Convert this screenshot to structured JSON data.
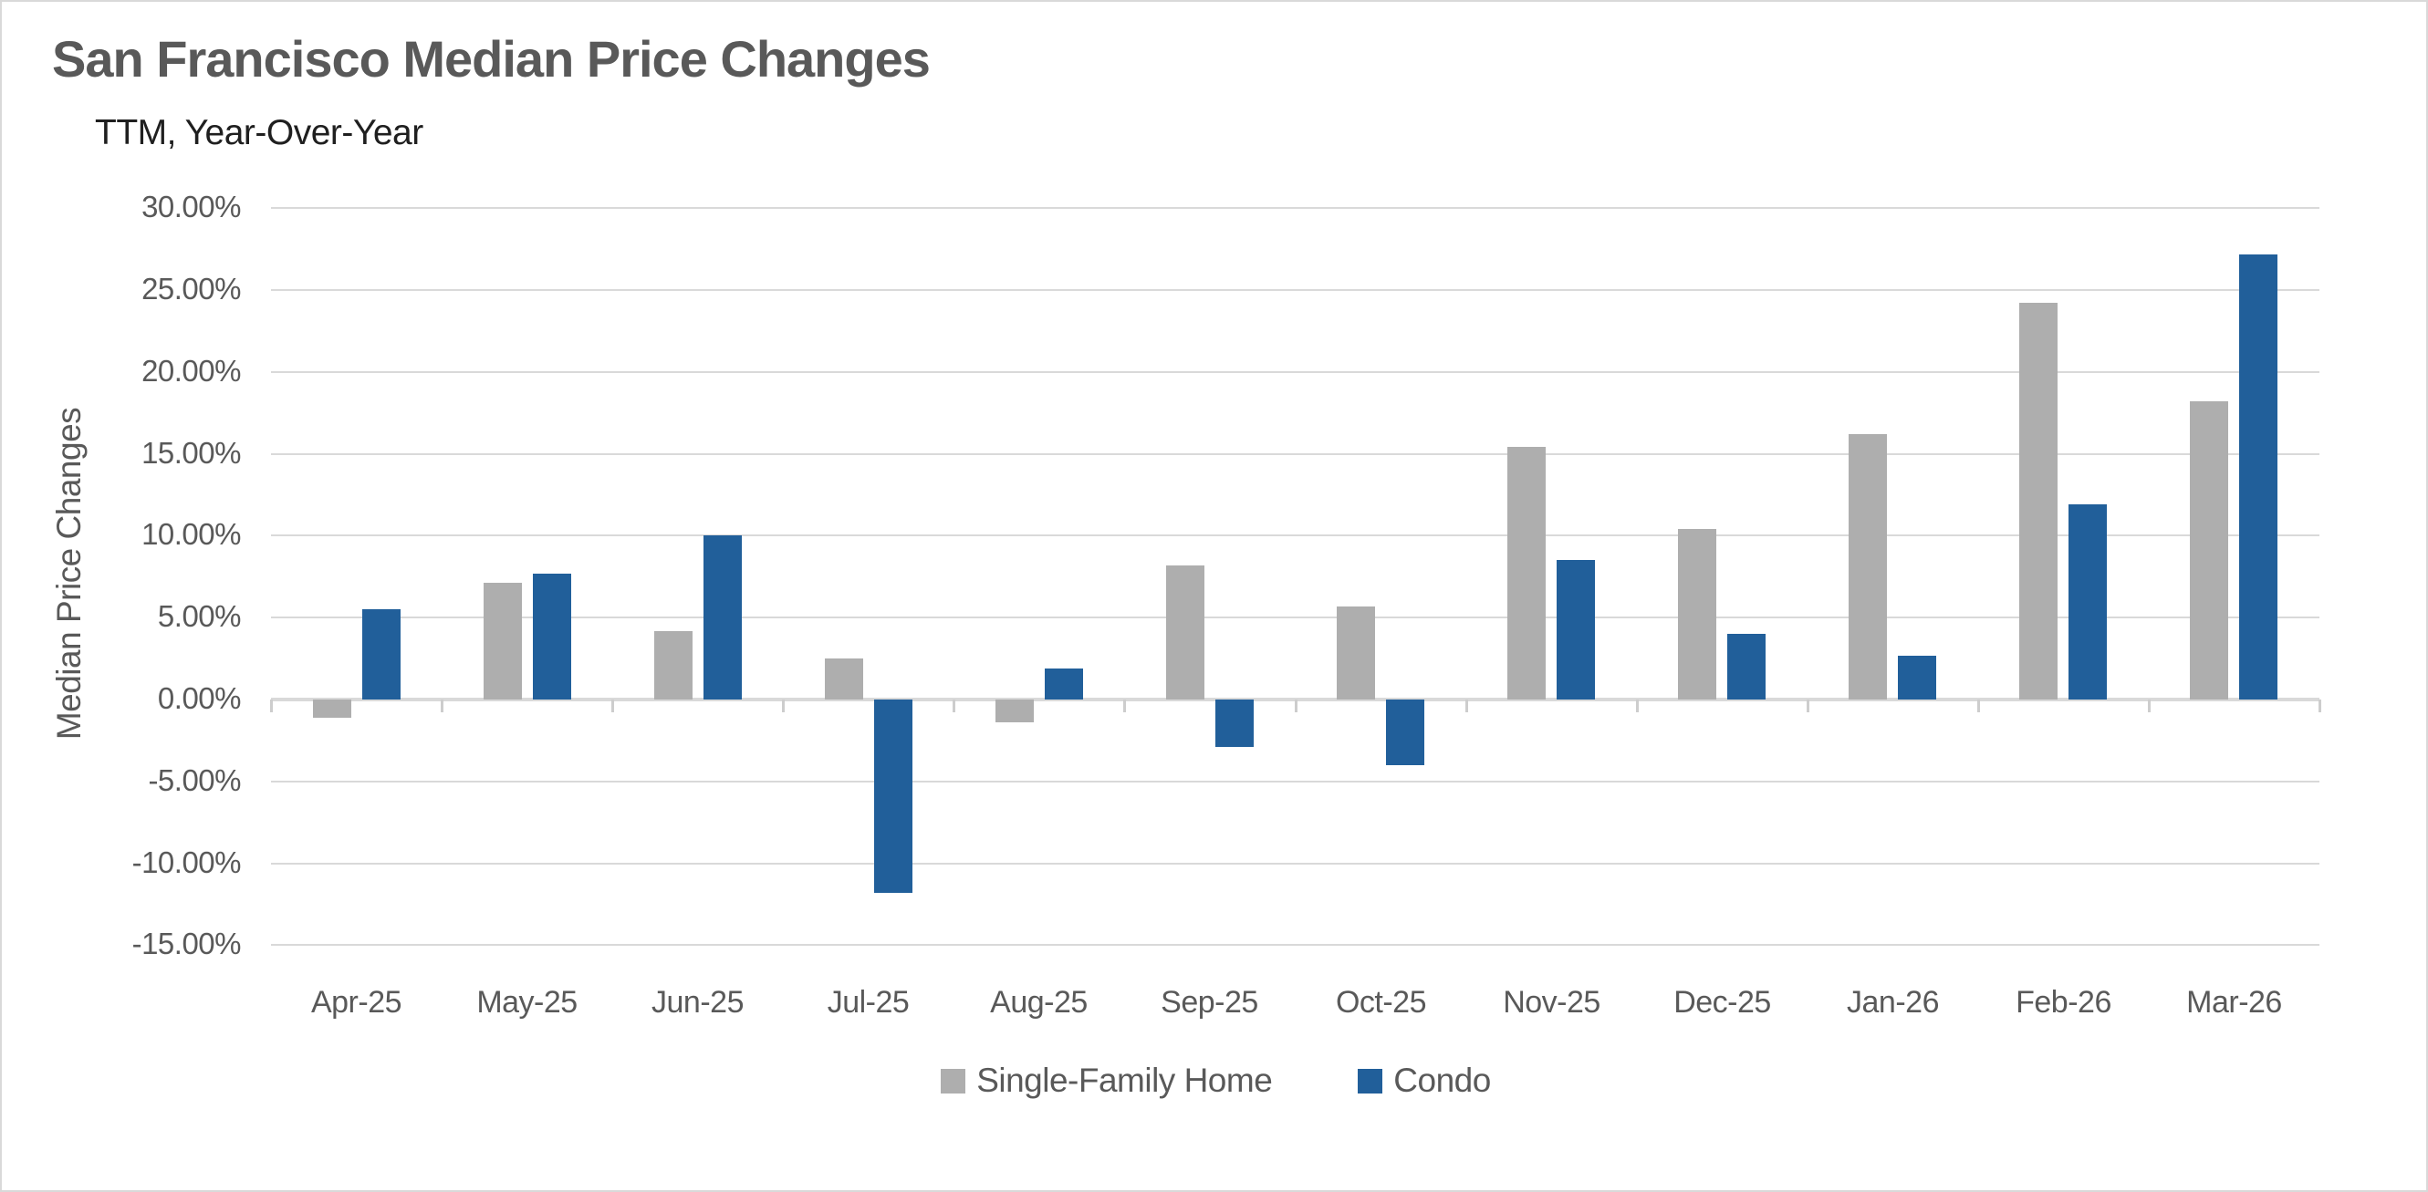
{
  "chart_data": {
    "type": "bar",
    "title": "San Francisco Median Price Changes",
    "subtitle": "TTM, Year-Over-Year",
    "ylabel": "Median Price Changes",
    "xlabel": "",
    "categories": [
      "Apr-25",
      "May-25",
      "Jun-25",
      "Jul-25",
      "Aug-25",
      "Sep-25",
      "Oct-25",
      "Nov-25",
      "Dec-25",
      "Jan-26",
      "Feb-26",
      "Mar-26"
    ],
    "series": [
      {
        "name": "Single-Family Home",
        "color": "#aeaeae",
        "values": [
          -1.1,
          7.1,
          4.2,
          2.5,
          -1.4,
          8.2,
          5.7,
          15.4,
          10.4,
          16.2,
          24.2,
          18.2
        ]
      },
      {
        "name": "Condo",
        "color": "#215f9a",
        "values": [
          5.5,
          7.7,
          10.0,
          -11.8,
          1.9,
          -2.9,
          -4.0,
          8.5,
          4.0,
          2.7,
          11.9,
          27.2
        ]
      }
    ],
    "ylim": [
      -15,
      30
    ],
    "ytick_step": 5,
    "ytick_format": "0.00%",
    "grid": true,
    "legend_position": "bottom",
    "colors": {
      "title": "#595959",
      "subtitle": "#1f1f1f",
      "axis_text": "#595959",
      "gridline": "#d9d9d9"
    }
  }
}
